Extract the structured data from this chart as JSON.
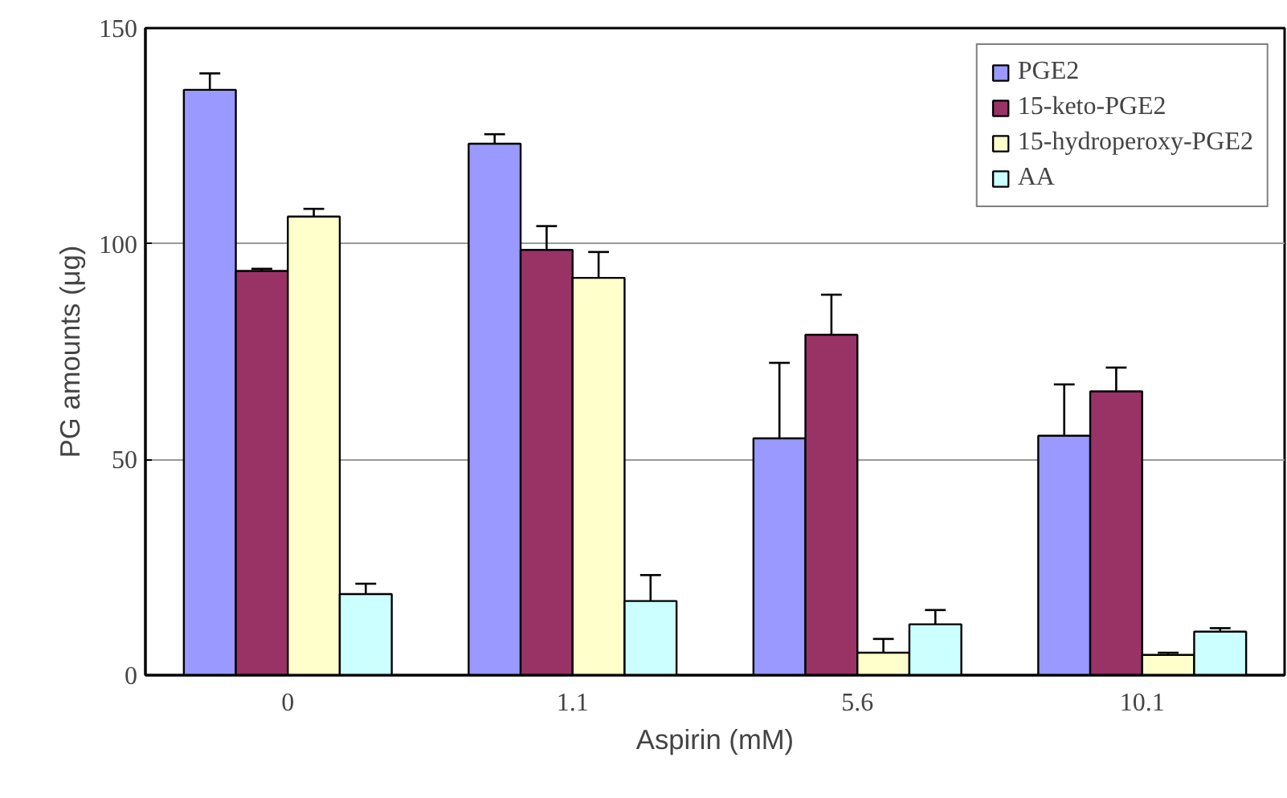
{
  "chart_data": {
    "type": "bar",
    "xlabel": "Aspirin (mM)",
    "ylabel": "PG amounts (μg)",
    "categories": [
      "0",
      "1.1",
      "5.6",
      "10.1"
    ],
    "series": [
      {
        "name": "PGE2",
        "color": "#9999ff",
        "values": [
          135.7,
          123.2,
          54.9,
          55.5
        ],
        "errors": [
          3.8,
          2.2,
          17.5,
          11.9
        ]
      },
      {
        "name": "15-keto-PGE2",
        "color": "#993366",
        "values": [
          93.7,
          98.6,
          78.9,
          65.8
        ],
        "errors": [
          0.5,
          5.5,
          9.3,
          5.5
        ]
      },
      {
        "name": "15-hydroperoxy-PGE2",
        "color": "#ffffcc",
        "values": [
          106.3,
          92.1,
          5.2,
          4.7
        ],
        "errors": [
          1.8,
          6.0,
          3.2,
          0.5
        ]
      },
      {
        "name": "AA",
        "color": "#ccffff",
        "values": [
          18.8,
          17.2,
          11.8,
          10.1
        ],
        "errors": [
          2.4,
          6.0,
          3.3,
          0.8
        ]
      }
    ],
    "ylim": [
      0,
      150
    ],
    "yticks": [
      0,
      50,
      100,
      150
    ],
    "grid": "y",
    "legend": "top right"
  }
}
